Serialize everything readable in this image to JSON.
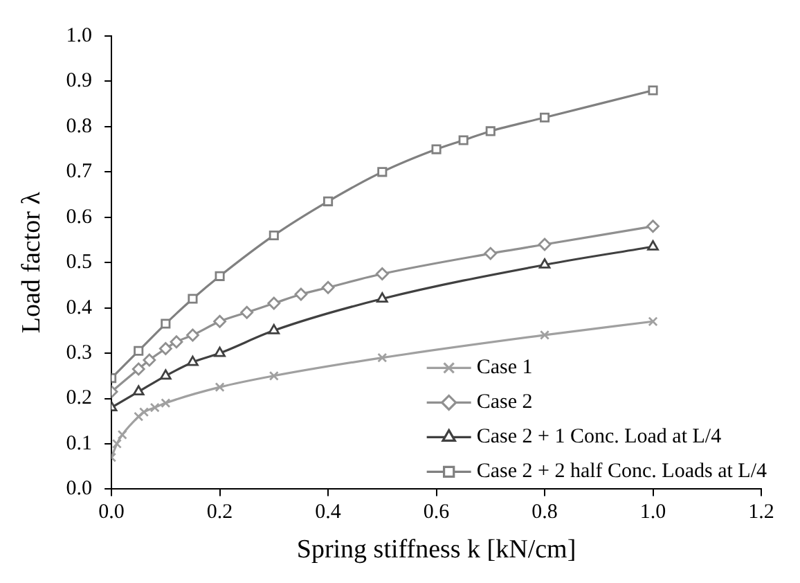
{
  "chart_data": {
    "type": "line",
    "xlabel": "Spring stiffness k [kN/cm]",
    "ylabel": "Load factor λ",
    "xlim": [
      0,
      1.2
    ],
    "xticks": [
      {
        "value": 0,
        "label": "0.0"
      },
      0.2,
      0.4,
      0.6,
      0.8,
      {
        "value": 1,
        "label": "1.0"
      },
      1.2
    ],
    "ylim": [
      0,
      1
    ],
    "yticks": [
      {
        "value": 0,
        "label": "0.0"
      },
      0.1,
      0.2,
      0.3,
      0.4,
      0.5,
      0.6,
      0.7,
      0.8,
      0.9,
      {
        "value": 1,
        "label": "1.0"
      }
    ],
    "grid": false,
    "legend": "bottom right",
    "line_style": "solid",
    "series": [
      {
        "name": "Case 1",
        "color": "#a0a0a0",
        "marker": "cross",
        "x": [
          0,
          0.01,
          0.02,
          0.05,
          0.06,
          0.08,
          0.1,
          0.2,
          0.3,
          0.5,
          0.8,
          1.0
        ],
        "values": [
          0.07,
          0.1,
          0.12,
          0.16,
          0.17,
          0.18,
          0.19,
          0.225,
          0.25,
          0.29,
          0.34,
          0.37
        ]
      },
      {
        "name": "Case 2",
        "color": "#909090",
        "marker": "diamond",
        "x": [
          0,
          0.05,
          0.07,
          0.1,
          0.12,
          0.15,
          0.2,
          0.25,
          0.3,
          0.35,
          0.4,
          0.5,
          0.7,
          0.8,
          1.0
        ],
        "values": [
          0.215,
          0.265,
          0.285,
          0.31,
          0.325,
          0.34,
          0.37,
          0.39,
          0.41,
          0.43,
          0.445,
          0.475,
          0.52,
          0.54,
          0.58
        ]
      },
      {
        "name": "Case 2 + 1 Conc. Load at L/4",
        "color": "#404040",
        "marker": "triangle",
        "x": [
          0,
          0.05,
          0.1,
          0.15,
          0.2,
          0.3,
          0.5,
          0.8,
          1.0
        ],
        "values": [
          0.18,
          0.215,
          0.25,
          0.28,
          0.3,
          0.35,
          0.42,
          0.495,
          0.535
        ]
      },
      {
        "name": "Case 2 + 2 half Conc. Loads at L/4",
        "color": "#808080",
        "marker": "square",
        "x": [
          0,
          0.05,
          0.1,
          0.15,
          0.2,
          0.3,
          0.4,
          0.5,
          0.6,
          0.65,
          0.7,
          0.8,
          1.0
        ],
        "values": [
          0.245,
          0.305,
          0.365,
          0.42,
          0.47,
          0.56,
          0.635,
          0.7,
          0.75,
          0.77,
          0.79,
          0.82,
          0.88
        ]
      }
    ]
  }
}
